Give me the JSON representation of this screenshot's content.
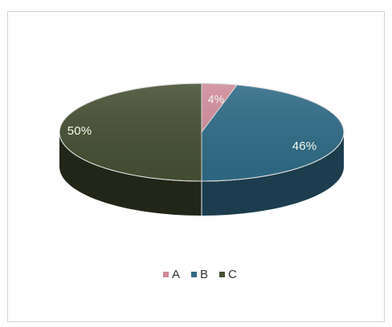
{
  "chart_data": {
    "type": "pie",
    "categories": [
      "A",
      "B",
      "C"
    ],
    "values": [
      4,
      46,
      50
    ],
    "data_labels": [
      "4%",
      "46%",
      "50%"
    ],
    "colors": [
      "#cf8a9a",
      "#2f6a86",
      "#454f33"
    ],
    "legend": {
      "placement": "bottom",
      "entries": [
        "A",
        "B",
        "C"
      ]
    }
  }
}
